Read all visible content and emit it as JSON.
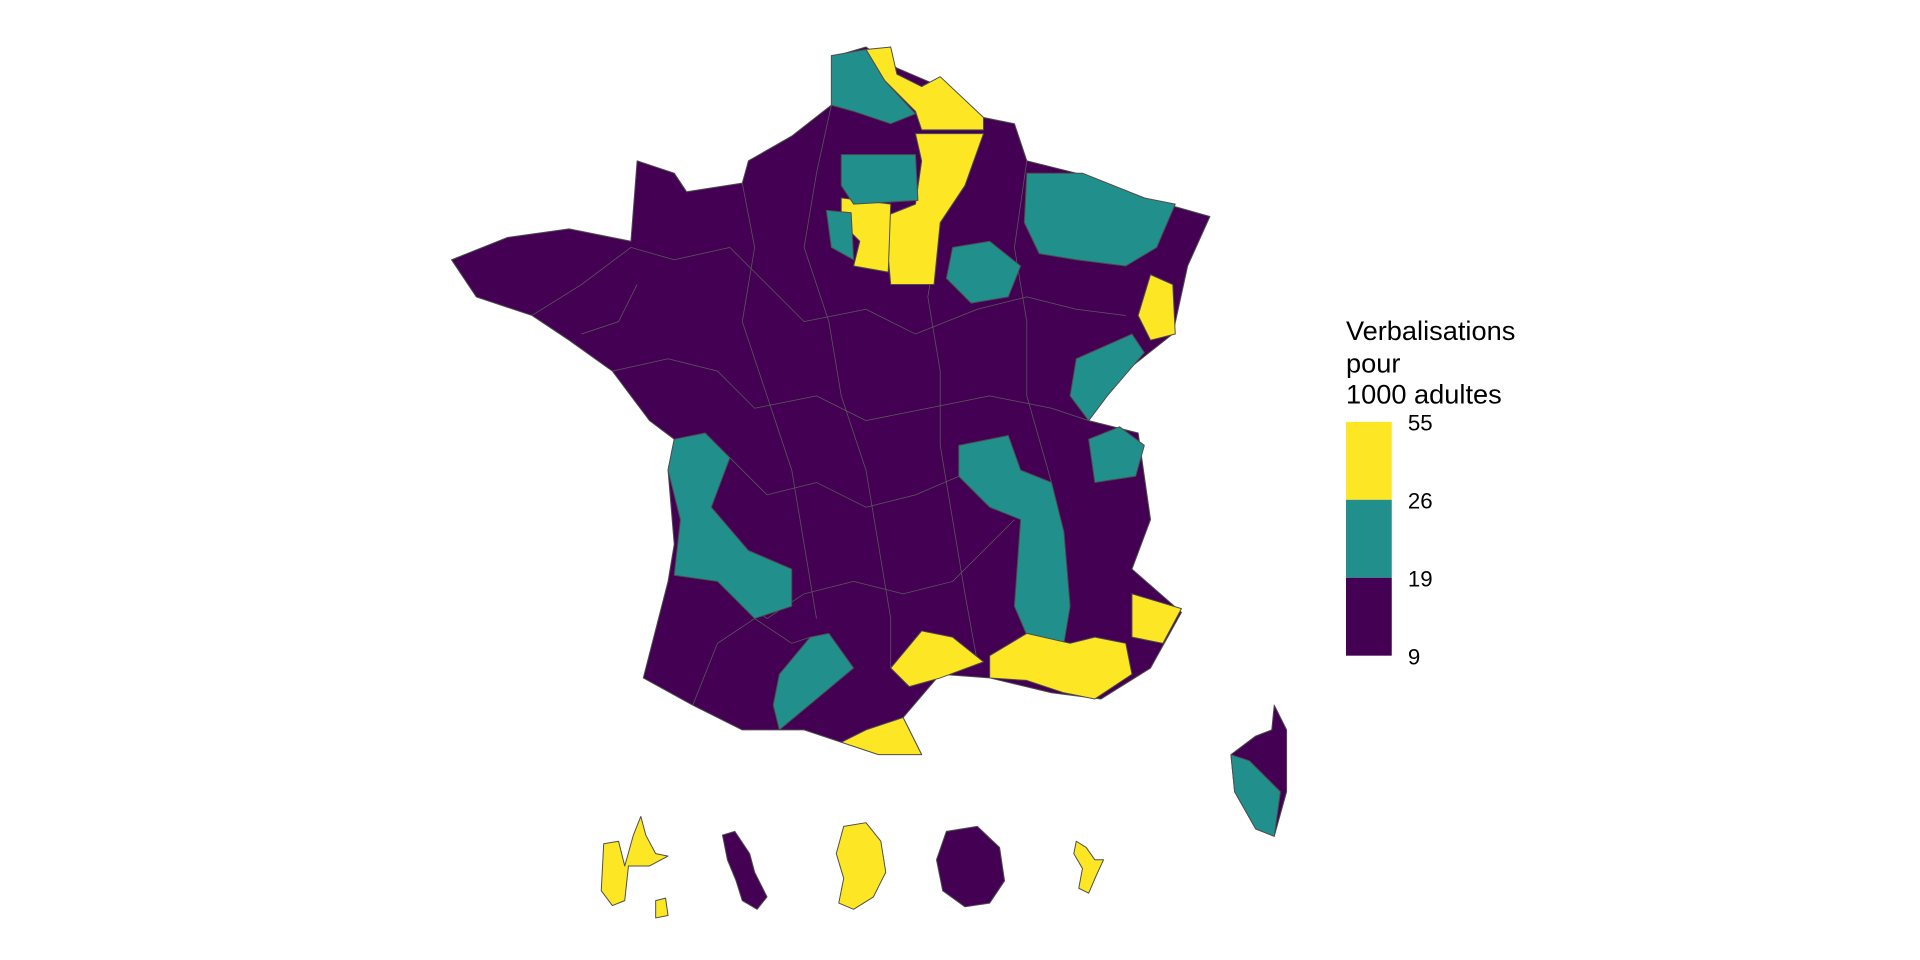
{
  "legend": {
    "title": [
      "Verbalisations",
      "pour",
      "1000 adultes"
    ],
    "breaks": [
      55,
      26,
      19,
      9
    ],
    "colors": [
      "#FDE725",
      "#21908C",
      "#440154"
    ]
  }
}
